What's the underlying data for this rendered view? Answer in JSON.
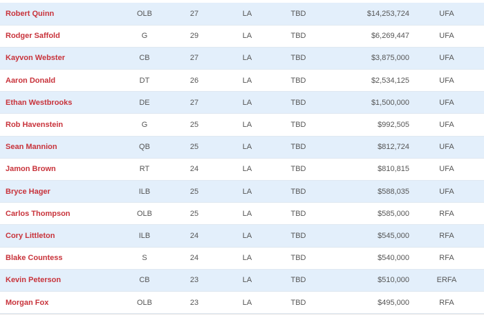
{
  "players": [
    {
      "name": "Robert Quinn",
      "pos": "OLB",
      "age": "27",
      "team": "LA",
      "status": "TBD",
      "salary": "$14,253,724",
      "fa": "UFA"
    },
    {
      "name": "Rodger Saffold",
      "pos": "G",
      "age": "29",
      "team": "LA",
      "status": "TBD",
      "salary": "$6,269,447",
      "fa": "UFA"
    },
    {
      "name": "Kayvon Webster",
      "pos": "CB",
      "age": "27",
      "team": "LA",
      "status": "TBD",
      "salary": "$3,875,000",
      "fa": "UFA"
    },
    {
      "name": "Aaron Donald",
      "pos": "DT",
      "age": "26",
      "team": "LA",
      "status": "TBD",
      "salary": "$2,534,125",
      "fa": "UFA"
    },
    {
      "name": "Ethan Westbrooks",
      "pos": "DE",
      "age": "27",
      "team": "LA",
      "status": "TBD",
      "salary": "$1,500,000",
      "fa": "UFA"
    },
    {
      "name": "Rob Havenstein",
      "pos": "G",
      "age": "25",
      "team": "LA",
      "status": "TBD",
      "salary": "$992,505",
      "fa": "UFA"
    },
    {
      "name": "Sean Mannion",
      "pos": "QB",
      "age": "25",
      "team": "LA",
      "status": "TBD",
      "salary": "$812,724",
      "fa": "UFA"
    },
    {
      "name": "Jamon Brown",
      "pos": "RT",
      "age": "24",
      "team": "LA",
      "status": "TBD",
      "salary": "$810,815",
      "fa": "UFA"
    },
    {
      "name": "Bryce Hager",
      "pos": "ILB",
      "age": "25",
      "team": "LA",
      "status": "TBD",
      "salary": "$588,035",
      "fa": "UFA"
    },
    {
      "name": "Carlos Thompson",
      "pos": "OLB",
      "age": "25",
      "team": "LA",
      "status": "TBD",
      "salary": "$585,000",
      "fa": "RFA"
    },
    {
      "name": "Cory Littleton",
      "pos": "ILB",
      "age": "24",
      "team": "LA",
      "status": "TBD",
      "salary": "$545,000",
      "fa": "RFA"
    },
    {
      "name": "Blake Countess",
      "pos": "S",
      "age": "24",
      "team": "LA",
      "status": "TBD",
      "salary": "$540,000",
      "fa": "RFA"
    },
    {
      "name": "Kevin Peterson",
      "pos": "CB",
      "age": "23",
      "team": "LA",
      "status": "TBD",
      "salary": "$510,000",
      "fa": "ERFA"
    },
    {
      "name": "Morgan Fox",
      "pos": "OLB",
      "age": "23",
      "team": "LA",
      "status": "TBD",
      "salary": "$495,000",
      "fa": "RFA"
    }
  ],
  "colors": {
    "row_alt": "#e3effb",
    "row_plain": "#ffffff",
    "player_link": "#c8333b",
    "cell_text": "#555555"
  }
}
